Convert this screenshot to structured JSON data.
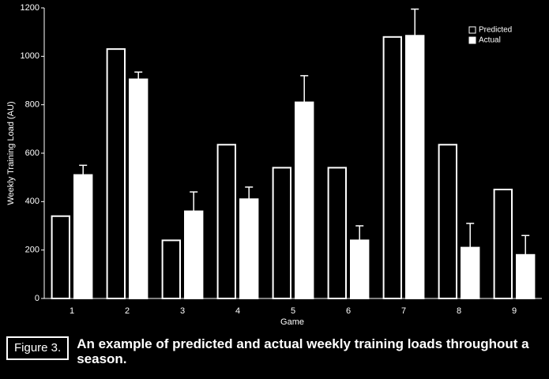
{
  "chart_data": {
    "type": "bar",
    "y_label": "Weekly Training Load (AU)",
    "x_label": "Game",
    "categories": [
      "1",
      "2",
      "3",
      "4",
      "5",
      "6",
      "7",
      "8",
      "9"
    ],
    "series": [
      {
        "name": "Predicted",
        "color": "#000000",
        "values": [
          340,
          1030,
          240,
          635,
          540,
          540,
          1080,
          635,
          450
        ]
      },
      {
        "name": "Actual",
        "color": "#ffffff",
        "values": [
          510,
          905,
          360,
          410,
          810,
          240,
          1085,
          210,
          180
        ],
        "errors": [
          40,
          30,
          80,
          50,
          110,
          60,
          110,
          100,
          80
        ]
      }
    ],
    "ylim": [
      0,
      1200
    ],
    "yticks": [
      0,
      200,
      400,
      600,
      800,
      1000,
      1200
    ],
    "legend": "upper right"
  },
  "caption": {
    "label": "Figure 3.",
    "text": "An example of predicted and actual weekly training loads throughout a season."
  }
}
